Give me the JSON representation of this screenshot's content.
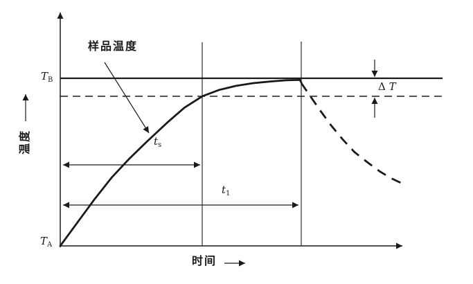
{
  "figure": {
    "background": "#ffffff",
    "ink": "#1a1a1a"
  },
  "y_axis": {
    "label": "温度"
  },
  "x_axis": {
    "label": "时间"
  },
  "labels": {
    "sample_temperature": "样品温度",
    "t_b": {
      "main": "T",
      "sub": "B"
    },
    "t_a": {
      "main": "T",
      "sub": "A"
    },
    "t_s": {
      "main": "t",
      "sub": "s"
    },
    "t_1": {
      "main": "t",
      "sub": "1"
    },
    "delta_t": {
      "symbol": "Δ",
      "var": "T"
    }
  },
  "chart_data": {
    "type": "line",
    "title": "",
    "xlabel": "时间",
    "ylabel": "温度",
    "axes_numeric": false,
    "grid": false,
    "note": "Qualitative schematic; x normalized 0-1 along time axis, y normalized with 0 = TA (start) and 1 = TB (upper reference line). Dashed horizontal line sits at TB minus delta-T (y = 0.893).",
    "series": [
      {
        "id": "heating",
        "name": "样品温度",
        "style": "solid",
        "x": [
          0,
          0.05,
          0.1,
          0.15,
          0.2,
          0.25,
          0.31,
          0.36,
          0.412,
          0.46,
          0.51,
          0.56,
          0.61,
          0.655,
          0.695,
          0.699
        ],
        "y": [
          0,
          0.14,
          0.28,
          0.41,
          0.52,
          0.62,
          0.735,
          0.825,
          0.893,
          0.93,
          0.955,
          0.971,
          0.981,
          0.988,
          0.99,
          0.975
        ]
      },
      {
        "id": "cooling",
        "style": "dashed",
        "x": [
          0.699,
          0.725,
          0.753,
          0.785,
          0.819,
          0.853,
          0.89,
          0.926,
          0.96,
          0.996
        ],
        "y": [
          0.971,
          0.893,
          0.81,
          0.72,
          0.635,
          0.56,
          0.5,
          0.445,
          0.403,
          0.368
        ]
      }
    ],
    "reference_lines": [
      {
        "label": "TB",
        "orientation": "horizontal",
        "y": 1.0,
        "style": "solid"
      },
      {
        "label": "TB - ΔT",
        "orientation": "horizontal",
        "y": 0.893,
        "style": "dashed"
      }
    ],
    "event_lines": [
      {
        "label": "ts",
        "orientation": "vertical",
        "x": 0.412,
        "style": "solid"
      },
      {
        "label": "t1",
        "orientation": "vertical",
        "x": 0.699,
        "style": "solid"
      }
    ],
    "annotations": [
      {
        "text": "样品温度",
        "target": "heating curve",
        "type": "leader-arrow"
      },
      {
        "text": "ΔT",
        "type": "gap-dimension",
        "between": [
          "TB line",
          "dashed line"
        ]
      },
      {
        "text": "ts",
        "type": "span-dimension",
        "from_x": 0,
        "to_x": 0.412
      },
      {
        "text": "t1",
        "type": "span-dimension",
        "from_x": 0,
        "to_x": 0.699
      },
      {
        "text": "TA",
        "position": "origin of y-axis"
      },
      {
        "text": "TB",
        "position": "upper horizontal reference line"
      }
    ]
  }
}
